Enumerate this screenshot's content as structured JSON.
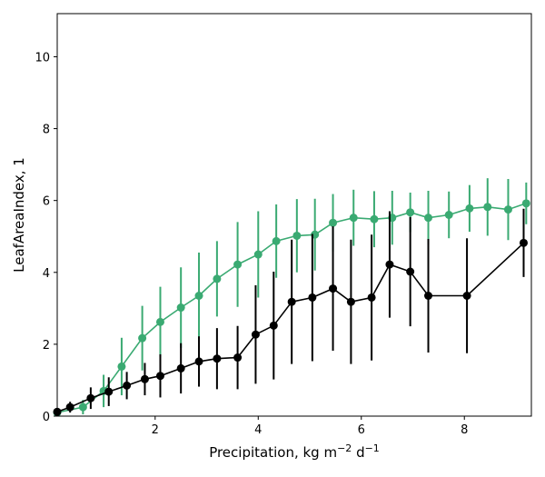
{
  "chart_data": {
    "type": "line",
    "xlabel": "Precipitation,  kg m",
    "xlabel_exp1": "−2",
    "xlabel_mid": " d",
    "xlabel_exp2": "−1",
    "ylabel": "LeafAreaIndex,  1",
    "xlim": [
      0.1,
      9.3
    ],
    "ylim": [
      0,
      11.2
    ],
    "xticks": [
      2,
      4,
      6,
      8
    ],
    "yticks": [
      0,
      2,
      4,
      6,
      8,
      10
    ],
    "grid": false,
    "series": [
      {
        "color": "#3aaa72",
        "x": [
          0.1,
          0.6,
          1.0,
          1.35,
          1.75,
          2.1,
          2.5,
          2.85,
          3.2,
          3.6,
          4.0,
          4.35,
          4.75,
          5.1,
          5.45,
          5.85,
          6.25,
          6.6,
          6.95,
          7.3,
          7.7,
          8.1,
          8.45,
          8.85,
          9.2
        ],
        "y": [
          0.1,
          0.25,
          0.7,
          1.38,
          2.17,
          2.62,
          3.02,
          3.35,
          3.82,
          4.22,
          4.5,
          4.87,
          5.02,
          5.05,
          5.38,
          5.52,
          5.48,
          5.52,
          5.67,
          5.52,
          5.6,
          5.78,
          5.82,
          5.75,
          5.92
        ],
        "err": [
          0.05,
          0.2,
          0.45,
          0.8,
          0.9,
          0.98,
          1.12,
          1.2,
          1.05,
          1.18,
          1.2,
          1.02,
          1.02,
          1.0,
          0.8,
          0.78,
          0.78,
          0.75,
          0.55,
          0.75,
          0.65,
          0.65,
          0.8,
          0.85,
          0.58
        ]
      },
      {
        "color": "#000000",
        "x": [
          0.1,
          0.35,
          0.75,
          1.1,
          1.45,
          1.8,
          2.1,
          2.5,
          2.85,
          3.2,
          3.6,
          3.95,
          4.3,
          4.65,
          5.05,
          5.45,
          5.8,
          6.2,
          6.55,
          6.95,
          7.3,
          8.05,
          9.15
        ],
        "y": [
          0.12,
          0.25,
          0.5,
          0.68,
          0.85,
          1.03,
          1.12,
          1.33,
          1.52,
          1.6,
          1.63,
          2.27,
          2.52,
          3.18,
          3.3,
          3.55,
          3.18,
          3.3,
          4.22,
          4.02,
          3.35,
          3.35,
          4.82
        ],
        "err": [
          0.05,
          0.15,
          0.3,
          0.4,
          0.38,
          0.45,
          0.6,
          0.7,
          0.7,
          0.85,
          0.88,
          1.37,
          1.5,
          1.73,
          1.77,
          1.73,
          1.73,
          1.75,
          1.48,
          1.52,
          1.58,
          1.6,
          0.95
        ]
      }
    ]
  }
}
